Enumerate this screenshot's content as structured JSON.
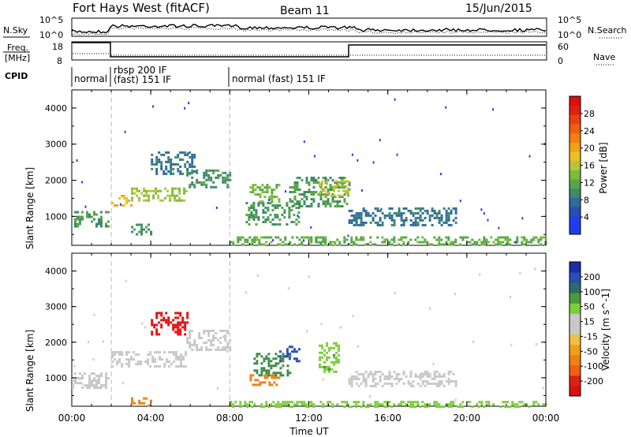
{
  "header": {
    "station": "Fort Hays West (fitACF)",
    "beam": "Beam 11",
    "date": "15/Jun/2015"
  },
  "top_panels": {
    "nsky_label": "N.Sky",
    "nsearch_label": "N.Search",
    "nsky_ticks": [
      "10^5",
      "10^0"
    ],
    "nsearch_ticks": [
      "10^5",
      "10^0"
    ],
    "freq_label_line1": "Freq.",
    "freq_label_line2": "[MHz]",
    "freq_ticks": [
      "18",
      "8"
    ],
    "nave_label": "Nave",
    "nave_ticks": [
      "60",
      "0"
    ],
    "cpid_label": "CPID",
    "cpid_segments": [
      {
        "line1": "normal",
        "line2": ""
      },
      {
        "line1": "rbsp 200 IF",
        "line2": "(fast) 151 IF"
      },
      {
        "line1": "normal (fast) 151 IF",
        "line2": ""
      }
    ]
  },
  "chart_data": [
    {
      "type": "heatmap",
      "title": "",
      "xlabel": "",
      "ylabel": "Slant Range [km]",
      "x_ticks": [
        "00:00",
        "04:00",
        "08:00",
        "12:00",
        "16:00",
        "20:00",
        "00:00"
      ],
      "y_ticks": [
        "1000",
        "2000",
        "3000",
        "4000"
      ],
      "ylim": [
        200,
        4500
      ],
      "xlim_hours": [
        0,
        24
      ],
      "colorbar": {
        "label": "Power [dB]",
        "ticks": [
          "4",
          "8",
          "12",
          "16",
          "20",
          "24",
          "28"
        ],
        "colors": [
          "#1e3ff0",
          "#1e3ff0",
          "#2a4fb0",
          "#2e6a9a",
          "#3e8a6a",
          "#58a64a",
          "#7cbc3a",
          "#b8c43a",
          "#e8c020",
          "#f0a018",
          "#f08010",
          "#f06010",
          "#e84010",
          "#e02010",
          "#dc1010"
        ]
      },
      "regions": [
        {
          "t0": 0.0,
          "t1": 1.8,
          "r0": 700,
          "r1": 1150,
          "value": 10
        },
        {
          "t0": 2.0,
          "t1": 3.0,
          "r0": 1300,
          "r1": 1600,
          "value": 18
        },
        {
          "t0": 3.0,
          "t1": 5.8,
          "r0": 1450,
          "r1": 1800,
          "value": 14
        },
        {
          "t0": 5.8,
          "t1": 8.0,
          "r0": 1800,
          "r1": 2300,
          "value": 9
        },
        {
          "t0": 4.0,
          "t1": 6.2,
          "r0": 2200,
          "r1": 2800,
          "value": 7
        },
        {
          "t0": 3.0,
          "t1": 4.0,
          "r0": 500,
          "r1": 800,
          "value": 9
        },
        {
          "t0": 8.8,
          "t1": 11.5,
          "r0": 750,
          "r1": 1400,
          "value": 10
        },
        {
          "t0": 9.0,
          "t1": 10.5,
          "r0": 1400,
          "r1": 1900,
          "value": 12
        },
        {
          "t0": 11.0,
          "t1": 14.0,
          "r0": 1300,
          "r1": 2100,
          "value": 10
        },
        {
          "t0": 12.5,
          "t1": 14.0,
          "r0": 1600,
          "r1": 2000,
          "value": 15
        },
        {
          "t0": 14.0,
          "t1": 19.5,
          "r0": 750,
          "r1": 1250,
          "value": 7
        },
        {
          "t0": 8.0,
          "t1": 24.0,
          "r0": 200,
          "r1": 450,
          "value": 11
        }
      ]
    },
    {
      "type": "heatmap",
      "title": "",
      "xlabel": "Time UT",
      "ylabel": "Slant Range [km]",
      "x_ticks": [
        "00:00",
        "04:00",
        "08:00",
        "12:00",
        "16:00",
        "20:00",
        "00:00"
      ],
      "y_ticks": [
        "1000",
        "2000",
        "3000",
        "4000"
      ],
      "ylim": [
        200,
        4500
      ],
      "xlim_hours": [
        0,
        24
      ],
      "colorbar": {
        "label": "Velocity [m s^-1]",
        "ticks": [
          "200",
          "100",
          "50",
          "15",
          "-15",
          "-50",
          "-100",
          "-200"
        ],
        "colors": [
          "#1a2fa8",
          "#2a4fb0",
          "#2e6a6a",
          "#4a9a3a",
          "#7ccf3a",
          "#c8c8c8",
          "#c8c8c8",
          "#f0c040",
          "#f0a018",
          "#f08010",
          "#f06010",
          "#e02010",
          "#dc1010"
        ]
      },
      "regions": [
        {
          "t0": 0.0,
          "t1": 1.8,
          "r0": 700,
          "r1": 1150,
          "value": 0
        },
        {
          "t0": 2.0,
          "t1": 5.8,
          "r0": 1350,
          "r1": 1750,
          "value": 0
        },
        {
          "t0": 5.8,
          "t1": 8.0,
          "r0": 1800,
          "r1": 2350,
          "value": 0
        },
        {
          "t0": 4.0,
          "t1": 5.8,
          "r0": 2200,
          "r1": 2850,
          "value": -220
        },
        {
          "t0": 3.0,
          "t1": 4.0,
          "r0": 250,
          "r1": 450,
          "value": -80
        },
        {
          "t0": 9.0,
          "t1": 10.5,
          "r0": 800,
          "r1": 1100,
          "value": -70
        },
        {
          "t0": 9.2,
          "t1": 11.0,
          "r0": 1100,
          "r1": 1700,
          "value": 60
        },
        {
          "t0": 10.5,
          "t1": 11.5,
          "r0": 1500,
          "r1": 1900,
          "value": 150
        },
        {
          "t0": 12.5,
          "t1": 13.5,
          "r0": 1200,
          "r1": 2000,
          "value": 40
        },
        {
          "t0": 14.0,
          "t1": 19.5,
          "r0": 800,
          "r1": 1200,
          "value": 0
        },
        {
          "t0": 8.0,
          "t1": 24.0,
          "r0": 200,
          "r1": 350,
          "value": 30
        }
      ]
    }
  ]
}
